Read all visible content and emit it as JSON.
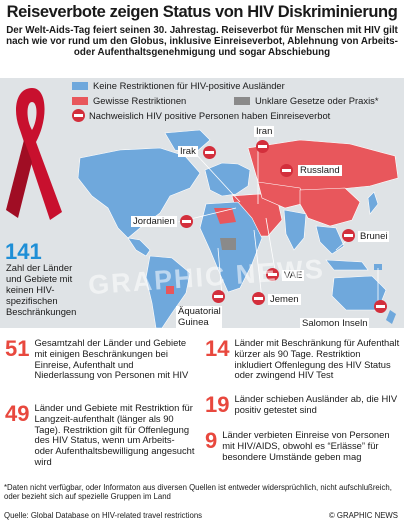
{
  "title": "Reiseverbote zeigen Status von HIV Diskriminierung",
  "subtitle": "Der Welt-Aids-Tag feiert seinen 30. Jahrestag. Reiseverbot für Menschen mit HIV gilt nach wie vor rund um den Globus, inklusive Einreiseverbot, Ablehnung von Arbeits- oder Aufenthaltsgenehmigung und sogar Abschiebung",
  "legend": {
    "no_restrictions": "Keine Restriktionen für HIV-positive Ausländer",
    "some_restrictions": "Gewisse Restriktionen",
    "unclear": "Unklare Gesetze oder Praxis*",
    "entry_ban": "Nachweislich HIV positive Personen haben Einreiseverbot"
  },
  "colors": {
    "no_restrictions": "#6fa8dc",
    "some_restrictions": "#e8575c",
    "unclear": "#8a8a8a",
    "ocean": "#dfe3e6",
    "accent_blue": "#1f8fd6",
    "accent_red": "#e8483e"
  },
  "map_labels": {
    "iran": "Iran",
    "irak": "Irak",
    "russland": "Russland",
    "jordanien": "Jordanien",
    "brunei": "Brunei",
    "vae": "VAE",
    "jemen": "Jemen",
    "aquatorial_guinea": "Äquatorial Guinea",
    "salomon_inseln": "Salomon Inseln"
  },
  "watermark": "GRAPHIC NEWS",
  "stat_141": {
    "value": "141",
    "text": "Zahl der Länder und Gebiete mit keinen HIV-spezifischen Beschränkungen"
  },
  "stats_left": [
    {
      "value": "51",
      "text": "Gesamtzahl der Länder und Gebiete mit einigen Beschränkungen bei Einreise, Aufenthalt und Niederlassung von Personen mit HIV"
    },
    {
      "value": "49",
      "text": "Länder und Gebiete mit Restriktion für Langzeit-aufenthalt (länger als 90 Tage). Restriktion gilt für Offenlegung des HIV Status, wenn um Arbeits- oder Aufenthaltsbewilligung angesucht wird"
    }
  ],
  "stats_right": [
    {
      "value": "14",
      "text": "Länder mit Beschränkung für Aufenthalt kürzer als 90 Tage. Restriktion inkludiert Offenlegung des HIV Status oder zwingend HIV Test"
    },
    {
      "value": "19",
      "text": "Länder schieben Ausländer ab, die HIV positiv getestet sind"
    },
    {
      "value": "9",
      "text": "Länder verbieten Einreise von Personen mit HIV/AIDS, obwohl es “Erlässe” für besondere Umstände geben mag"
    }
  ],
  "footnote": "*Daten nicht verfügbar, oder Informaton aus diversen Quellen ist entweder widersprüchlich, nicht aufschlußreich, oder bezieht sich auf spezielle Gruppen im Land",
  "source": "Quelle: Global Database on HIV-related travel restrictions",
  "credit": "© GRAPHIC NEWS"
}
